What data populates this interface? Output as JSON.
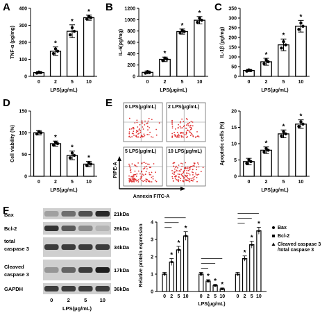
{
  "panels": {
    "A": {
      "label": "A",
      "chart_data": {
        "type": "bar",
        "categories": [
          "0",
          "2",
          "5",
          "10"
        ],
        "values": [
          22,
          148,
          265,
          345
        ],
        "errors": [
          6,
          25,
          38,
          15
        ],
        "ylabel": "TNF-α (pg/mg)",
        "xlabel": "LPS(μg/mL)",
        "ylim": [
          0,
          400
        ],
        "yticks": [
          0,
          100,
          200,
          300,
          400
        ],
        "significance": [
          "",
          "*",
          "*",
          "*"
        ]
      }
    },
    "B": {
      "label": "B",
      "chart_data": {
        "type": "bar",
        "categories": [
          "0",
          "2",
          "5",
          "10"
        ],
        "values": [
          70,
          300,
          790,
          990
        ],
        "errors": [
          25,
          40,
          45,
          65
        ],
        "ylabel": "IL-6(pg/mg)",
        "xlabel": "LPS(μg/mL)",
        "ylim": [
          0,
          1200
        ],
        "yticks": [
          0,
          200,
          400,
          600,
          800,
          1000,
          1200
        ],
        "significance": [
          "",
          "*",
          "*",
          "*"
        ]
      }
    },
    "C": {
      "label": "C",
      "chart_data": {
        "type": "bar",
        "categories": [
          "0",
          "2",
          "5",
          "10"
        ],
        "values": [
          30,
          75,
          162,
          258
        ],
        "errors": [
          6,
          18,
          30,
          30
        ],
        "ylabel": "IL-1β (pg/mg)",
        "xlabel": "LPS(μg/mL)",
        "ylim": [
          0,
          350
        ],
        "yticks": [
          0,
          50,
          100,
          150,
          200,
          250,
          300,
          350
        ],
        "significance": [
          "",
          "*",
          "*",
          "*"
        ]
      }
    },
    "D": {
      "label": "D",
      "chart_data": {
        "type": "bar",
        "categories": [
          "0",
          "2",
          "5",
          "10"
        ],
        "values": [
          100,
          75,
          48,
          28
        ],
        "errors": [
          5,
          6,
          10,
          6
        ],
        "ylabel": "Cell viability (%)",
        "xlabel": "LPS(μg/mL)",
        "ylim": [
          0,
          150
        ],
        "yticks": [
          0,
          50,
          100,
          150
        ],
        "significance": [
          "",
          "*",
          "*",
          "*"
        ]
      }
    },
    "E": {
      "label": "E",
      "flow": {
        "cells": [
          "0 LPS(μg/mL)",
          "2 LPS(μg/mL)",
          "5 LPS(μg/mL)",
          "10 LPS(μg/mL)"
        ],
        "y_axis": "PIPE-A",
        "x_axis": "Annexin FITC-A"
      },
      "chart_data": {
        "type": "bar",
        "categories": [
          "0",
          "2",
          "5",
          "10"
        ],
        "values": [
          4.5,
          8,
          13,
          16
        ],
        "errors": [
          1,
          1,
          1.2,
          1.3
        ],
        "ylabel": "Apoptotic cells (%)",
        "xlabel": "LPS(μg/mL)",
        "ylim": [
          0,
          20
        ],
        "yticks": [
          0,
          5,
          10,
          15,
          20
        ],
        "significance": [
          "",
          "*",
          "*",
          "*"
        ]
      }
    },
    "F": {
      "label": "F",
      "blot": {
        "left_labels": [
          "Bax",
          "Bcl-2",
          "total\ncaspase 3",
          "Cleaved\ncaspase 3",
          "GAPDH"
        ],
        "kda": [
          "21kDa",
          "26kDa",
          "34kDa",
          "17kDa",
          "36kDa"
        ],
        "lanes": [
          "0",
          "2",
          "5",
          "10"
        ],
        "xlabel": "LPS(μg/mL)",
        "intensity": [
          [
            0.35,
            0.6,
            0.75,
            0.95
          ],
          [
            0.9,
            0.7,
            0.45,
            0.25
          ],
          [
            0.85,
            0.85,
            0.85,
            0.85
          ],
          [
            0.4,
            0.65,
            0.85,
            1.0
          ],
          [
            0.85,
            0.85,
            0.85,
            0.85
          ]
        ]
      },
      "chart_data": {
        "type": "bar",
        "categories": [
          "0",
          "2",
          "5",
          "10"
        ],
        "series": [
          {
            "name": "Bax",
            "values": [
              1.0,
              1.7,
              2.4,
              3.2
            ],
            "errors": [
              0.1,
              0.2,
              0.2,
              0.25
            ]
          },
          {
            "name": "Bcl-2",
            "values": [
              1.0,
              0.6,
              0.35,
              0.15
            ],
            "errors": [
              0.1,
              0.08,
              0.06,
              0.05
            ]
          },
          {
            "name": "Cleaved caspase 3/total caspase 3",
            "values": [
              1.0,
              1.9,
              2.7,
              3.5
            ],
            "errors": [
              0.1,
              0.15,
              0.2,
              0.2
            ]
          }
        ],
        "ylabel": "Relative protein expression",
        "xlabel": "LPS(μg/mL)",
        "ylim": [
          0,
          4
        ],
        "yticks": [
          0,
          1,
          2,
          3,
          4
        ],
        "legend_markers": [
          "circle",
          "square",
          "triangle"
        ],
        "significance": [
          [
            "",
            "*",
            "*",
            "*"
          ],
          [
            "",
            "*",
            "*",
            "*"
          ],
          [
            "",
            "*",
            "*",
            "*"
          ]
        ]
      }
    }
  }
}
